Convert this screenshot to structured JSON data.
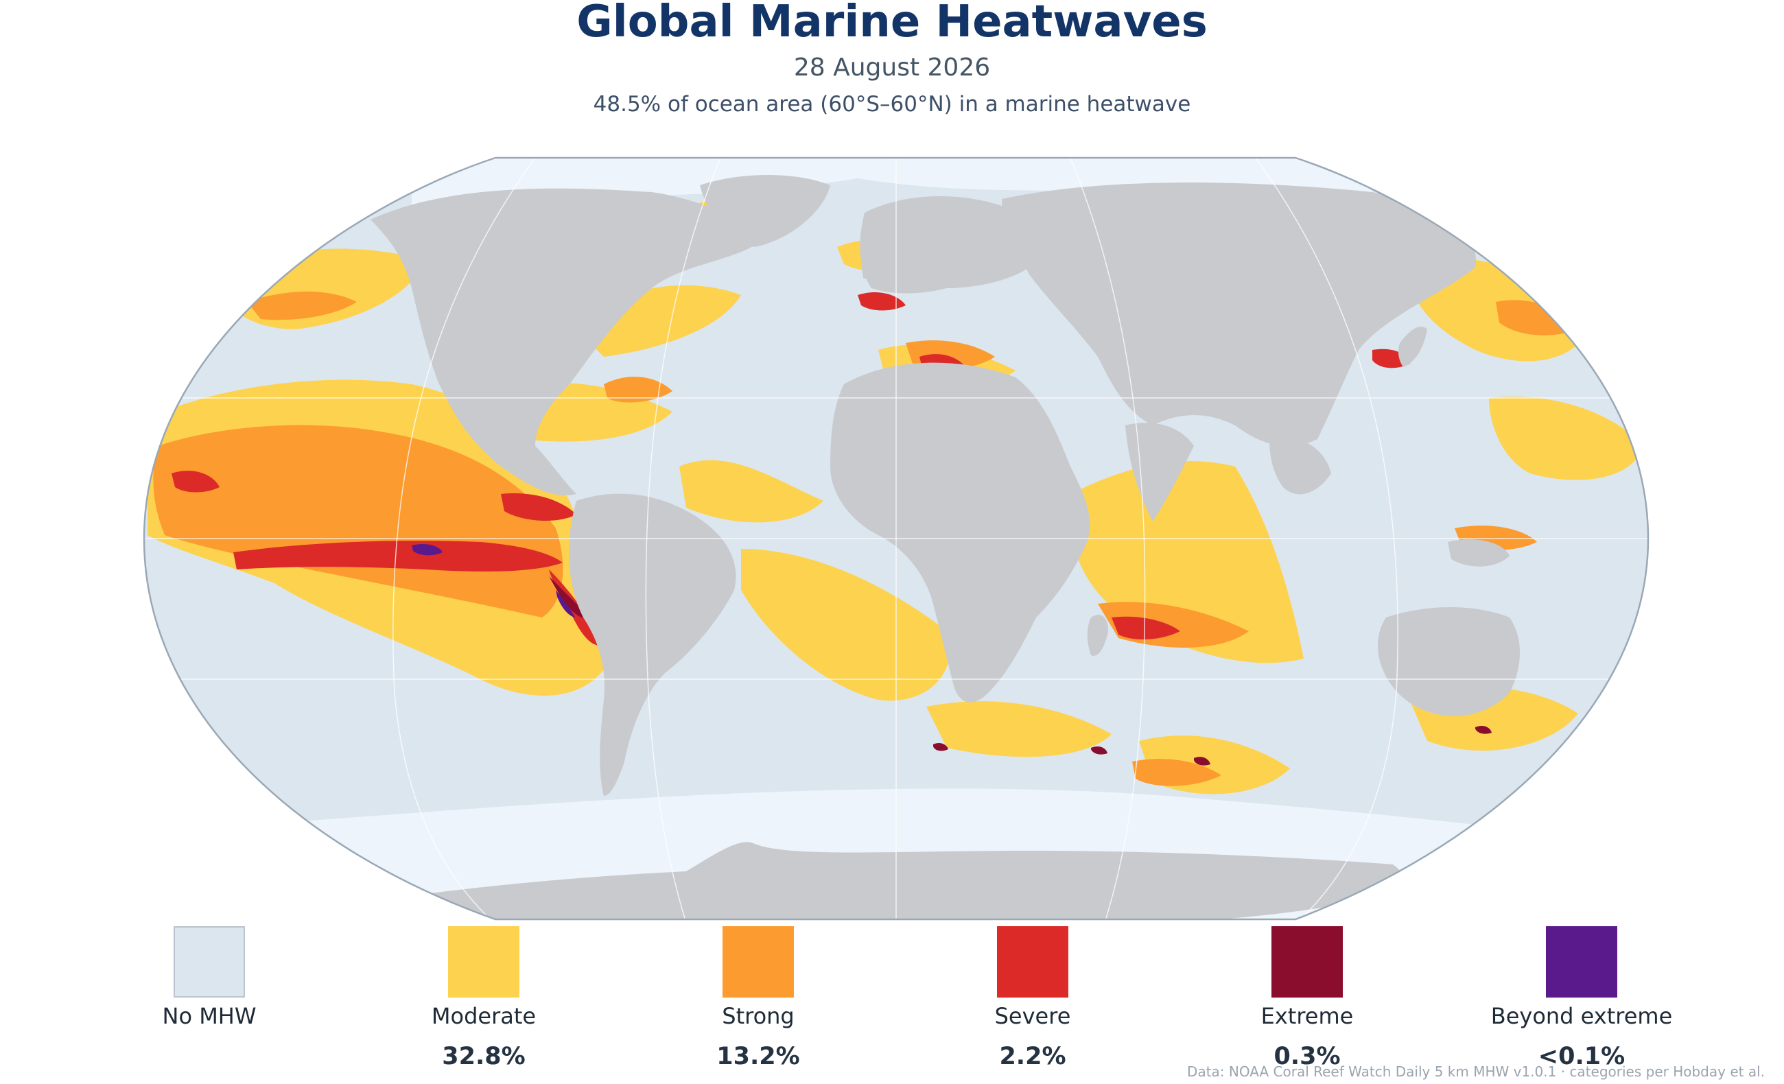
{
  "header": {
    "title": "Global Marine Heatwaves",
    "date": "28 August 2026",
    "summary": "48.5% of ocean area (60°S–60°N) in a marine heatwave"
  },
  "colors": {
    "ocean": "#dce6ef",
    "ice": "#eef4fb",
    "land": "#c8cace",
    "moderate": "#fdd24f",
    "strong": "#fb9b30",
    "severe": "#db2a28",
    "extreme": "#8b0d2e",
    "beyond_extreme": "#5a1a8c"
  },
  "legend": [
    {
      "label": "No MHW",
      "value": "",
      "color": "#dce6ef"
    },
    {
      "label": "Moderate",
      "value": "32.8%",
      "color": "#fdd24f"
    },
    {
      "label": "Strong",
      "value": "13.2%",
      "color": "#fb9b30"
    },
    {
      "label": "Severe",
      "value": "2.2%",
      "color": "#db2a28"
    },
    {
      "label": "Extreme",
      "value": "0.3%",
      "color": "#8b0d2e"
    },
    {
      "label": "Beyond extreme",
      "value": "<0.1%",
      "color": "#5a1a8c"
    }
  ],
  "credit": "Data: NOAA Coral Reef Watch Daily 5 km MHW v1.0.1  ·  categories per Hobday et al."
}
